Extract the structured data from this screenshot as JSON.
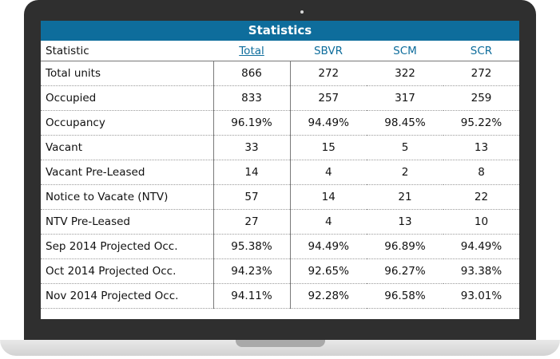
{
  "table": {
    "title": "Statistics",
    "headers": [
      "Statistic",
      "Total",
      "SBVR",
      "SCM",
      "SCR"
    ],
    "rows": [
      {
        "label": "Total units",
        "values": [
          "866",
          "272",
          "322",
          "272"
        ]
      },
      {
        "label": "Occupied",
        "values": [
          "833",
          "257",
          "317",
          "259"
        ]
      },
      {
        "label": "Occupancy",
        "values": [
          "96.19%",
          "94.49%",
          "98.45%",
          "95.22%"
        ]
      },
      {
        "label": "Vacant",
        "values": [
          "33",
          "15",
          "5",
          "13"
        ]
      },
      {
        "label": "Vacant Pre-Leased",
        "values": [
          "14",
          "4",
          "2",
          "8"
        ]
      },
      {
        "label": "Notice to Vacate (NTV)",
        "values": [
          "57",
          "14",
          "21",
          "22"
        ]
      },
      {
        "label": "NTV Pre-Leased",
        "values": [
          "27",
          "4",
          "13",
          "10"
        ]
      },
      {
        "label": "Sep 2014 Projected Occ.",
        "values": [
          "95.38%",
          "94.49%",
          "96.89%",
          "94.49%"
        ]
      },
      {
        "label": "Oct 2014 Projected Occ.",
        "values": [
          "94.23%",
          "92.65%",
          "96.27%",
          "93.38%"
        ]
      },
      {
        "label": "Nov 2014 Projected Occ.",
        "values": [
          "94.11%",
          "92.28%",
          "96.58%",
          "93.01%"
        ]
      }
    ]
  },
  "colors": {
    "header_bar": "#0e6d9c",
    "link": "#0e6d9c",
    "laptop_frame": "#2f2f2f"
  }
}
